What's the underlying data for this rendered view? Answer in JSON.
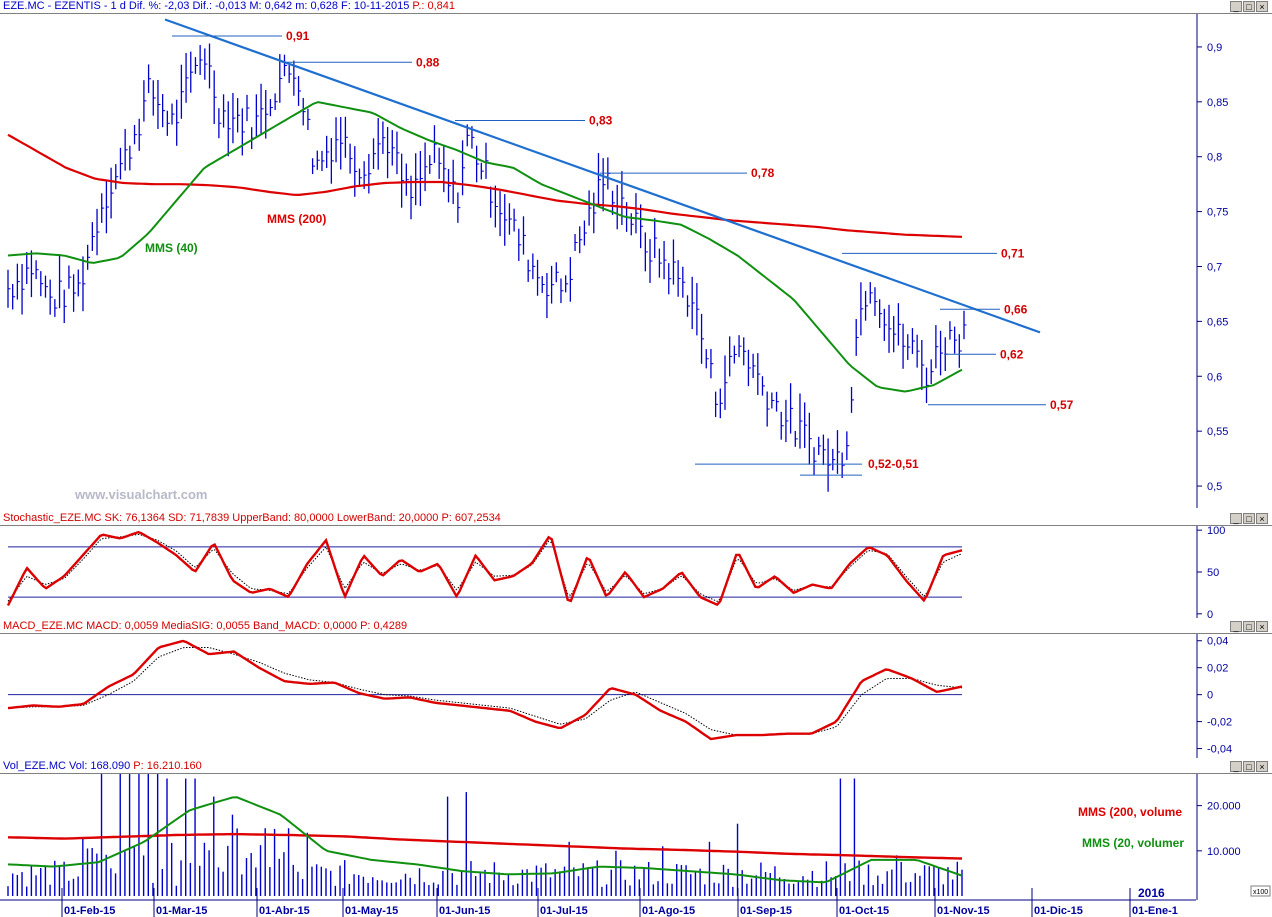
{
  "price_panel": {
    "header": "EZE.MC - EZENTIS - 1 d Dif. %: -2,03 Dif.: -0,013 M: 0,642 m: 0,628 F: 10-11-2015",
    "header_p": "P.: 0,841",
    "watermark": "www.visualchart.com"
  },
  "stoch_panel": {
    "header": "Stochastic_EZE.MC SK: 76,1364 SD: 71,7839 UpperBand: 80,0000 LowerBand: 20,0000",
    "header_p": "P: 607,2534"
  },
  "macd_panel": {
    "header": "MACD_EZE.MC MACD: 0,0059 MediaSIG: 0,0055 Band_MACD: 0,0000",
    "header_p": "P: 0,4289"
  },
  "vol_panel": {
    "header": "Vol_EZE.MC Vol: 168.090",
    "header_p": "P: 16.210.160",
    "x100": "x100"
  },
  "window_buttons": [
    "_",
    "□",
    "×"
  ],
  "colors": {
    "price_bars": "#0000cc",
    "mms200": "#dd0000",
    "mms40": "#109010",
    "trendline": "#1f6fd0",
    "annotation_text": "#d40000",
    "level_lines": "#2060c0",
    "axis_text": "#0000a0"
  },
  "chart_data": [
    {
      "type": "line",
      "name": "price",
      "y_ticks": [
        "0,9",
        "0,85",
        "0,8",
        "0,75",
        "0,7",
        "0,65",
        "0,6",
        "0,55",
        "0,5"
      ],
      "y_tick_values": [
        0.9,
        0.85,
        0.8,
        0.75,
        0.7,
        0.65,
        0.6,
        0.55,
        0.5
      ],
      "ylim": [
        0.48,
        0.93
      ],
      "x_ticks": [
        "01-Feb-15",
        "01-Mar-15",
        "01-Abr-15",
        "01-May-15",
        "01-Jun-15",
        "01-Jul-15",
        "01-Ago-15",
        "01-Sep-15",
        "01-Oct-15",
        "01-Nov-15",
        "01-Dic-15",
        "01-Ene-1"
      ],
      "year_label": "2016",
      "series": [
        {
          "name": "MMS (200)",
          "values": [
            0.82,
            0.805,
            0.79,
            0.78,
            0.776,
            0.775,
            0.775,
            0.774,
            0.772,
            0.768,
            0.765,
            0.768,
            0.773,
            0.776,
            0.777,
            0.777,
            0.774,
            0.77,
            0.765,
            0.76,
            0.757,
            0.755,
            0.752,
            0.748,
            0.745,
            0.742,
            0.74,
            0.738,
            0.736,
            0.733,
            0.731,
            0.729,
            0.728,
            0.727
          ]
        },
        {
          "name": "MMS (40)",
          "values": [
            0.71,
            0.712,
            0.71,
            0.703,
            0.708,
            0.73,
            0.76,
            0.79,
            0.805,
            0.82,
            0.835,
            0.85,
            0.845,
            0.84,
            0.826,
            0.815,
            0.806,
            0.795,
            0.79,
            0.775,
            0.765,
            0.755,
            0.745,
            0.742,
            0.738,
            0.725,
            0.71,
            0.69,
            0.67,
            0.64,
            0.61,
            0.59,
            0.586,
            0.592,
            0.606
          ]
        }
      ],
      "annotations": [
        {
          "label": "0,91",
          "value": 0.91
        },
        {
          "label": "0,88",
          "value": 0.886
        },
        {
          "label": "0,83",
          "value": 0.833
        },
        {
          "label": "0,78",
          "value": 0.785
        },
        {
          "label": "0,71",
          "value": 0.712
        },
        {
          "label": "0,66",
          "value": 0.661
        },
        {
          "label": "0,62",
          "value": 0.62
        },
        {
          "label": "0,57",
          "value": 0.574
        },
        {
          "label": "0,52-0,51",
          "value": 0.52
        }
      ],
      "series_labels": [
        "MMS (200)",
        "MMS (40)"
      ],
      "trendline": {
        "from_value": 0.925,
        "to_value": 0.64
      }
    },
    {
      "type": "line",
      "name": "stochastic",
      "y_ticks": [
        "100",
        "50",
        "0"
      ],
      "y_tick_values": [
        100,
        50,
        0
      ],
      "ylim": [
        -5,
        105
      ],
      "bands": [
        80,
        20
      ],
      "series": [
        {
          "name": "SK",
          "values": [
            10,
            55,
            30,
            45,
            70,
            95,
            90,
            98,
            85,
            70,
            50,
            85,
            40,
            25,
            30,
            20,
            60,
            88,
            20,
            70,
            45,
            65,
            50,
            60,
            20,
            70,
            40,
            45,
            60,
            95,
            10,
            70,
            20,
            50,
            20,
            30,
            50,
            20,
            10,
            75,
            30,
            45,
            25,
            35,
            30,
            60,
            80,
            70,
            40,
            15,
            70,
            76
          ]
        },
        {
          "name": "SD",
          "values": [
            15,
            45,
            35,
            42,
            65,
            90,
            92,
            95,
            88,
            75,
            55,
            78,
            48,
            30,
            28,
            24,
            55,
            80,
            30,
            62,
            48,
            60,
            52,
            58,
            28,
            62,
            45,
            46,
            58,
            90,
            18,
            62,
            26,
            46,
            24,
            30,
            46,
            24,
            14,
            68,
            36,
            42,
            28,
            34,
            32,
            56,
            76,
            72,
            45,
            20,
            62,
            72
          ]
        }
      ]
    },
    {
      "type": "line",
      "name": "macd",
      "y_ticks": [
        "0,04",
        "0,02",
        "0",
        "-0,02",
        "-0,04"
      ],
      "y_tick_values": [
        0.04,
        0.02,
        0,
        -0.02,
        -0.04
      ],
      "ylim": [
        -0.047,
        0.045
      ],
      "series": [
        {
          "name": "MACD",
          "values": [
            -0.01,
            -0.008,
            -0.009,
            -0.007,
            0.006,
            0.015,
            0.035,
            0.04,
            0.03,
            0.032,
            0.02,
            0.01,
            0.008,
            0.009,
            0.001,
            -0.003,
            -0.002,
            -0.006,
            -0.008,
            -0.01,
            -0.012,
            -0.02,
            -0.025,
            -0.015,
            0.005,
            0.0,
            -0.012,
            -0.02,
            -0.033,
            -0.03,
            -0.03,
            -0.029,
            -0.029,
            -0.02,
            0.01,
            0.019,
            0.012,
            0.002,
            0.006
          ]
        },
        {
          "name": "MediaSIG",
          "values": [
            -0.01,
            -0.009,
            -0.009,
            -0.008,
            0.0,
            0.01,
            0.028,
            0.035,
            0.035,
            0.03,
            0.024,
            0.016,
            0.011,
            0.009,
            0.004,
            0.0,
            -0.001,
            -0.004,
            -0.006,
            -0.008,
            -0.01,
            -0.016,
            -0.022,
            -0.018,
            -0.004,
            0.002,
            -0.006,
            -0.014,
            -0.026,
            -0.03,
            -0.03,
            -0.029,
            -0.029,
            -0.024,
            0.0,
            0.012,
            0.012,
            0.007,
            0.005
          ]
        }
      ]
    },
    {
      "type": "bar",
      "name": "volume",
      "y_ticks": [
        "20.000",
        "10.000"
      ],
      "y_tick_values": [
        20000,
        10000
      ],
      "ylim": [
        0,
        27000
      ],
      "series_labels": [
        "MMS (200, volume",
        "MMS (20, volumer"
      ],
      "series": [
        {
          "name": "MMS (200, volume",
          "values": [
            13000,
            12700,
            13100,
            13500,
            13700,
            13500,
            13200,
            12500,
            12000,
            11500,
            11000,
            10500,
            10200,
            9800,
            9300,
            9000,
            8600,
            8300
          ]
        },
        {
          "name": "MMS (20, volumer",
          "values": [
            7000,
            6500,
            7500,
            12000,
            19000,
            22000,
            18000,
            10000,
            8000,
            7000,
            5500,
            4800,
            5000,
            6500,
            6200,
            5500,
            4800,
            3500,
            3000,
            8000,
            8000,
            4500
          ]
        }
      ]
    }
  ]
}
